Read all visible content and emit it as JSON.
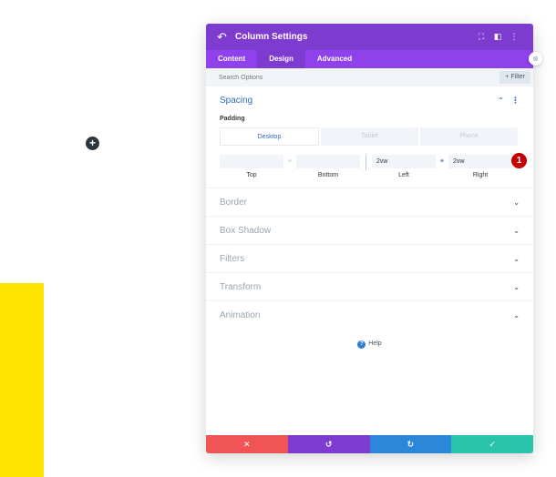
{
  "colors": {
    "accent": "#7e3bd0",
    "link": "#2e6dba",
    "highlight": "#ffe600",
    "badge": "#c40000"
  },
  "canvas": {
    "add_icon": "plus-icon",
    "add_glyph": "+"
  },
  "modal": {
    "title": "Column Settings",
    "icons": {
      "back": "↶",
      "focus": "⛶",
      "split": "◧",
      "menu": "⋮",
      "close": "⊗"
    },
    "tabs": [
      "Content",
      "Design",
      "Advanced"
    ],
    "active_tab": "Design",
    "search": {
      "placeholder": "Search Options"
    },
    "filter_label": "+ Filter",
    "spacing": {
      "title": "Spacing",
      "padding_label": "Padding",
      "devices": [
        "Desktop",
        "Tablet",
        "Phone"
      ],
      "active_device": "Desktop",
      "fields": [
        {
          "label": "Top",
          "value": ""
        },
        {
          "label": "Bottom",
          "value": ""
        },
        {
          "label": "Left",
          "value": "2vw"
        },
        {
          "label": "Right",
          "value": "2vw"
        }
      ],
      "badge": "1"
    },
    "sections": [
      "Border",
      "Box Shadow",
      "Filters",
      "Transform",
      "Animation"
    ],
    "help_label": "Help",
    "footer": {
      "cancel": "✕",
      "undo": "↺",
      "redo": "↻",
      "save": "✓"
    }
  }
}
